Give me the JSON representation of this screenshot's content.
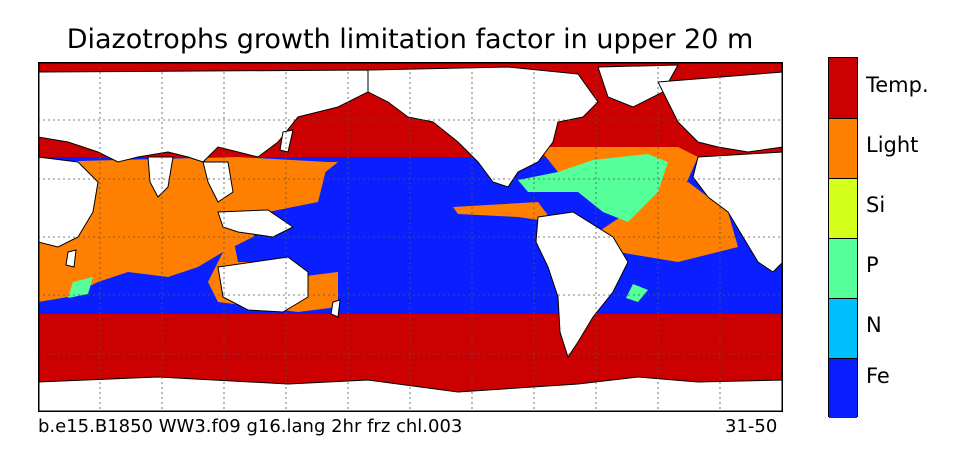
{
  "title": "Diazotrophs growth limitation factor in upper 20 m",
  "footer": {
    "case_name": "b.e15.B1850 WW3.f09 g16.lang 2hr frz chl.003",
    "years": "31-50"
  },
  "colorbar": {
    "categories": [
      {
        "label": "Temp.",
        "color": "#cc0000"
      },
      {
        "label": "Light",
        "color": "#ff8000"
      },
      {
        "label": "Si",
        "color": "#d4ff1a"
      },
      {
        "label": "P",
        "color": "#55ff99"
      },
      {
        "label": "N",
        "color": "#00bfff"
      },
      {
        "label": "Fe",
        "color": "#0a1fff"
      }
    ]
  },
  "map": {
    "ocean_base_color": "#0a1fff",
    "land_color": "#ffffff",
    "graticule": "dotted"
  }
}
